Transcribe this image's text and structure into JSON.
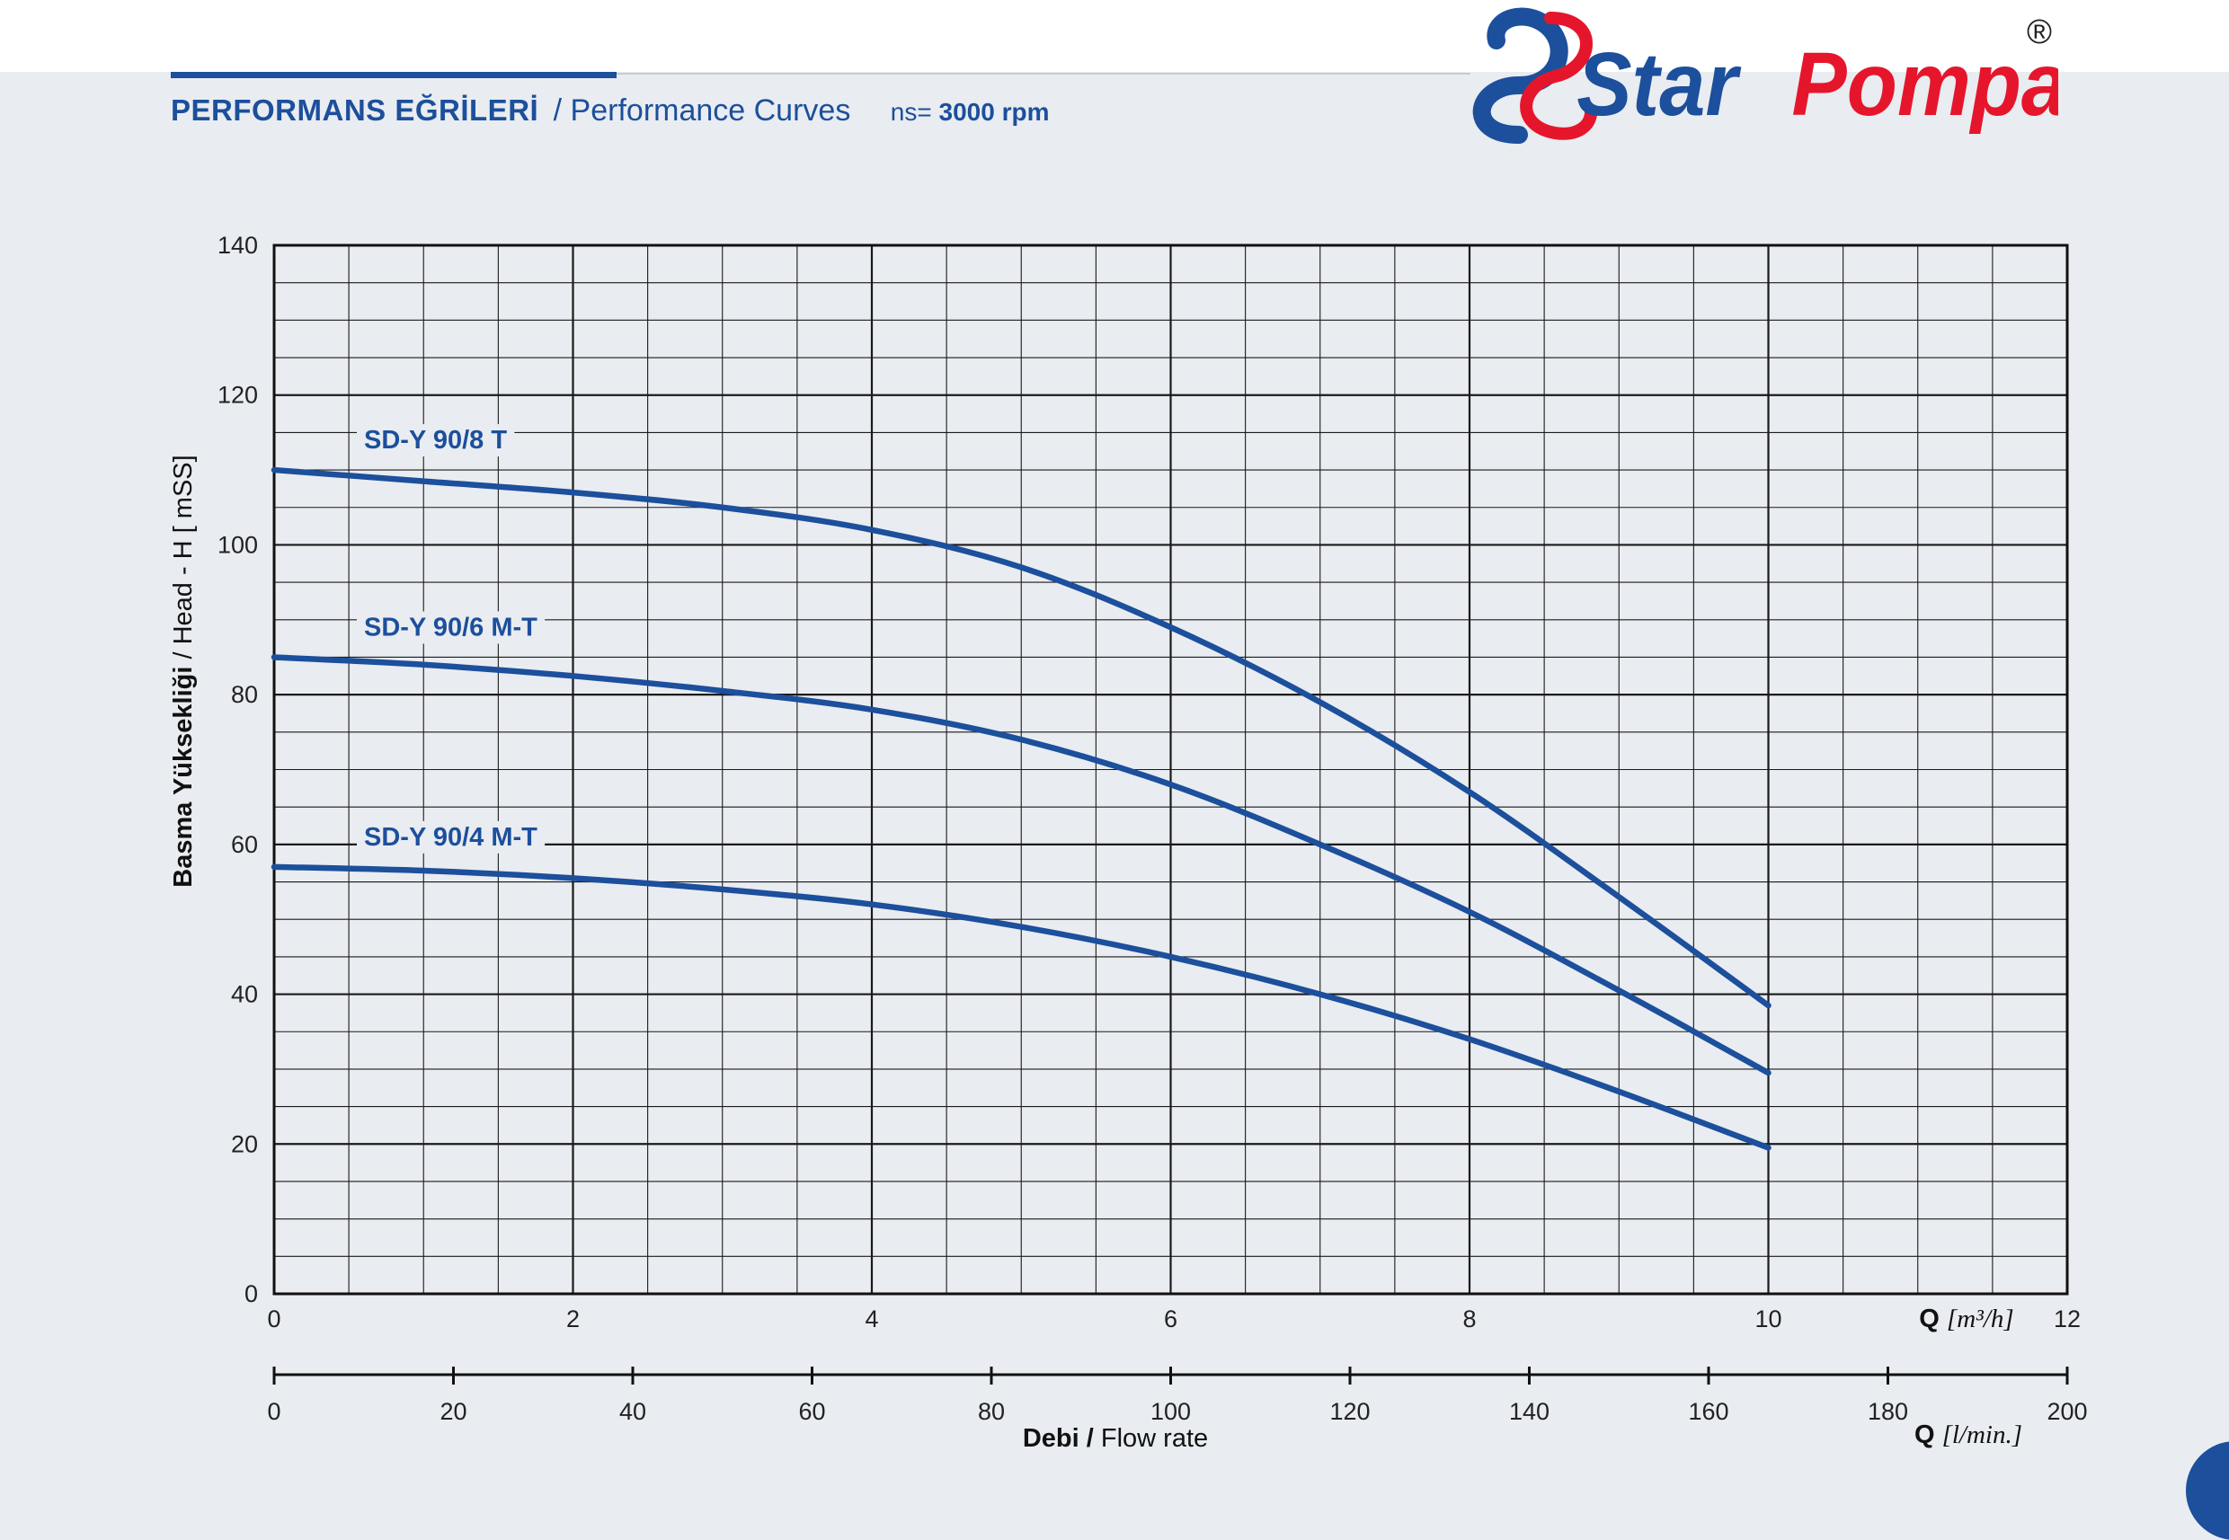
{
  "header": {
    "title_tr": "PERFORMANS EĞRİLERİ",
    "title_en": "/ Performance Curves",
    "speed_label": "ns=",
    "speed_value": "3000 rpm"
  },
  "brand": {
    "name_part1": "Star",
    "name_part2": "Pompa",
    "registered": "®",
    "colors": {
      "blue": "#1c4f9c",
      "red": "#e5162b"
    }
  },
  "chart_data": {
    "type": "line",
    "ylabel_tr": "Basma Yüksekliği",
    "ylabel_en": "/ Head - H [ mSS]",
    "xlabel_tr": "Debi /",
    "xlabel_en": "Flow rate",
    "x_primary": {
      "label_bold": "Q",
      "label_unit": "[m³/h]",
      "range": [
        0,
        12
      ],
      "ticks": [
        0,
        2,
        4,
        6,
        8,
        10,
        12
      ]
    },
    "x_secondary": {
      "label_bold": "Q",
      "label_unit": "[l/min.]",
      "range": [
        0,
        200
      ],
      "ticks": [
        0,
        20,
        40,
        60,
        80,
        100,
        120,
        140,
        160,
        180,
        200
      ]
    },
    "y": {
      "range": [
        0,
        140
      ],
      "ticks": [
        0,
        20,
        40,
        60,
        80,
        100,
        120,
        140
      ]
    },
    "grid": true,
    "line_color": "#1c4f9c",
    "series": [
      {
        "name": "SD-Y 90/8 T",
        "x": [
          0,
          1,
          2,
          3,
          4,
          5,
          6,
          7,
          8,
          9,
          10
        ],
        "values": [
          110,
          108.5,
          107,
          105,
          102,
          97,
          89,
          79,
          67,
          53,
          38.5
        ]
      },
      {
        "name": "SD-Y 90/6 M-T",
        "x": [
          0,
          1,
          2,
          3,
          4,
          5,
          6,
          7,
          8,
          9,
          10
        ],
        "values": [
          85,
          84,
          82.5,
          80.5,
          78,
          74,
          68,
          60,
          51,
          40.5,
          29.5
        ]
      },
      {
        "name": "SD-Y 90/4 M-T",
        "x": [
          0,
          1,
          2,
          3,
          4,
          5,
          6,
          7,
          8,
          9,
          10
        ],
        "values": [
          57,
          56.5,
          55.5,
          54,
          52,
          49,
          45,
          40,
          34,
          27,
          19.5
        ]
      }
    ]
  }
}
